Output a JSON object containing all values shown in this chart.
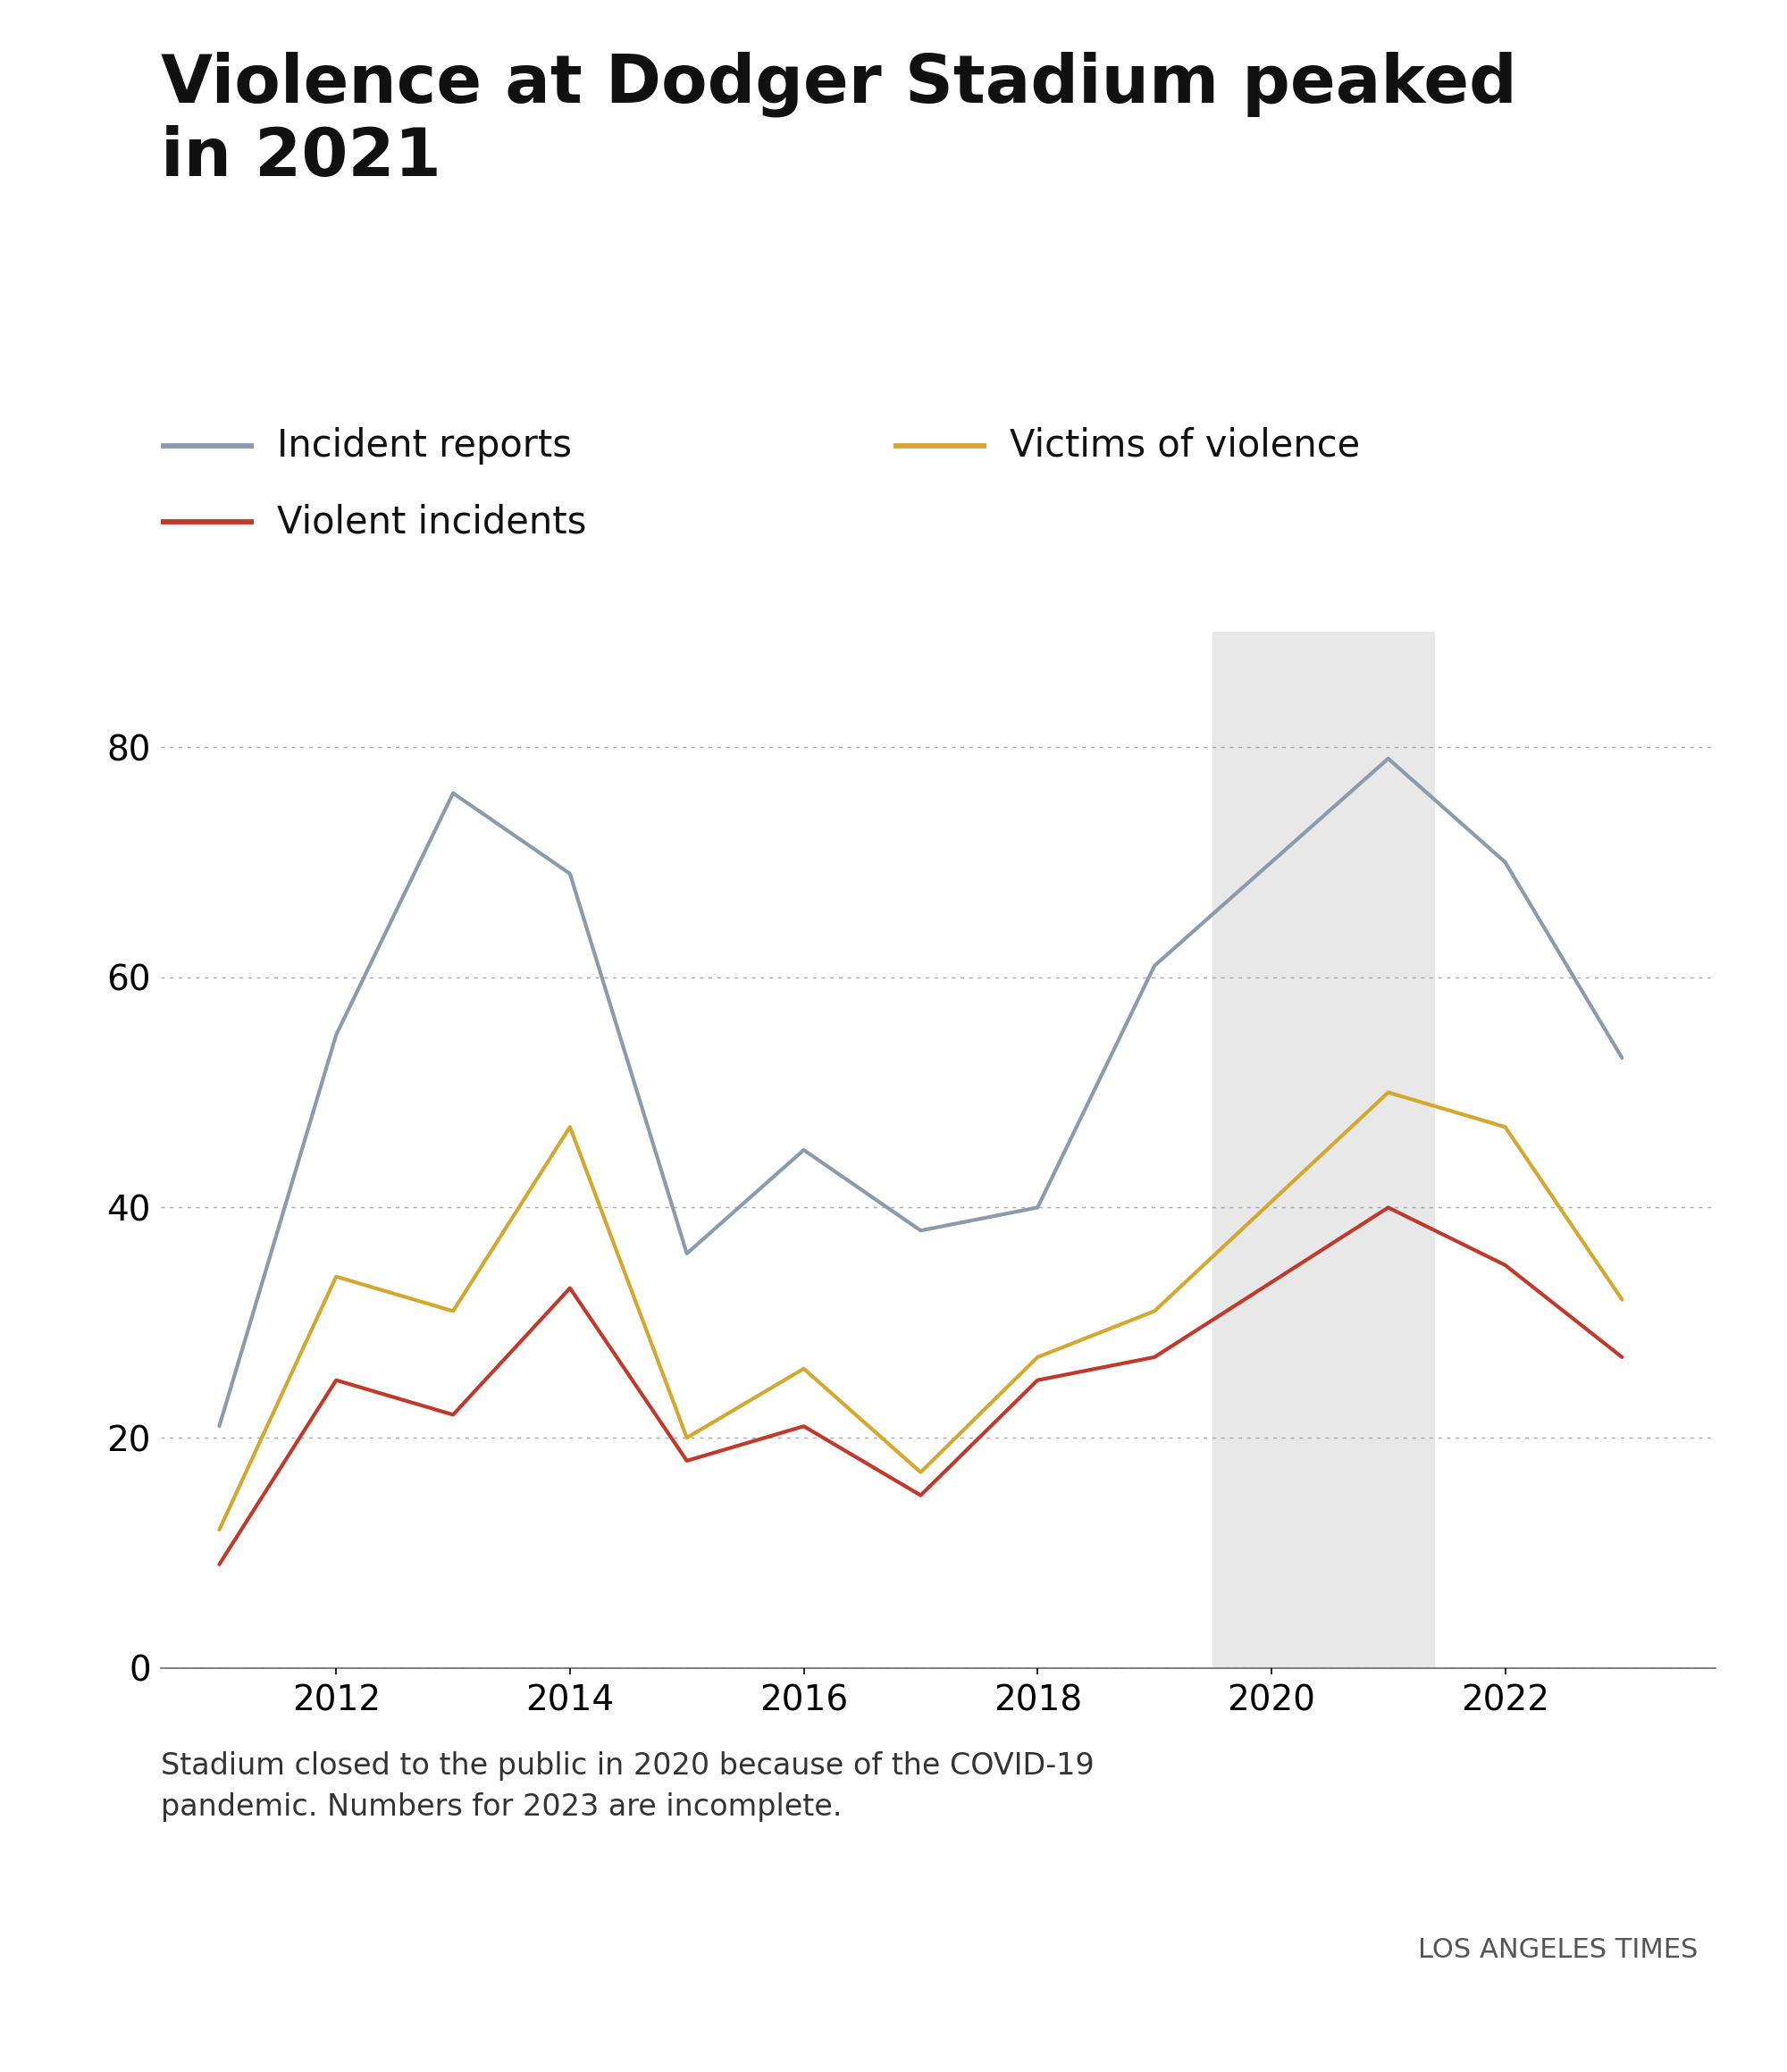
{
  "title": "Violence at Dodger Stadium peaked\nin 2021",
  "years": [
    2011,
    2012,
    2013,
    2014,
    2015,
    2016,
    2017,
    2018,
    2019,
    2021,
    2022,
    2023
  ],
  "incident_reports": [
    21,
    55,
    76,
    69,
    36,
    45,
    38,
    40,
    61,
    79,
    70,
    53
  ],
  "violent_incidents": [
    9,
    25,
    22,
    33,
    18,
    21,
    15,
    25,
    27,
    40,
    35,
    27
  ],
  "victims_of_violence": [
    12,
    34,
    31,
    47,
    20,
    26,
    17,
    27,
    31,
    50,
    47,
    32
  ],
  "incident_reports_color": "#8c9bab",
  "violent_incidents_color": "#c0392b",
  "victims_of_violence_color": "#d4a82f",
  "shaded_region_start": 2019.5,
  "shaded_region_end": 2021.4,
  "shaded_color": "#e8e8e8",
  "background_color": "#ffffff",
  "ylim": [
    0,
    90
  ],
  "yticks": [
    0,
    20,
    40,
    60,
    80
  ],
  "xtick_positions": [
    2012,
    2014,
    2016,
    2018,
    2020,
    2022
  ],
  "xlim_left": 2010.5,
  "xlim_right": 2023.8,
  "footnote": "Stadium closed to the public in 2020 because of the COVID-19\npandemic. Numbers for 2023 are incomplete.",
  "source": "LOS ANGELES TIMES",
  "line_width": 3.0,
  "title_fontsize": 54,
  "legend_fontsize": 30,
  "tick_fontsize": 28,
  "footnote_fontsize": 24,
  "source_fontsize": 22
}
